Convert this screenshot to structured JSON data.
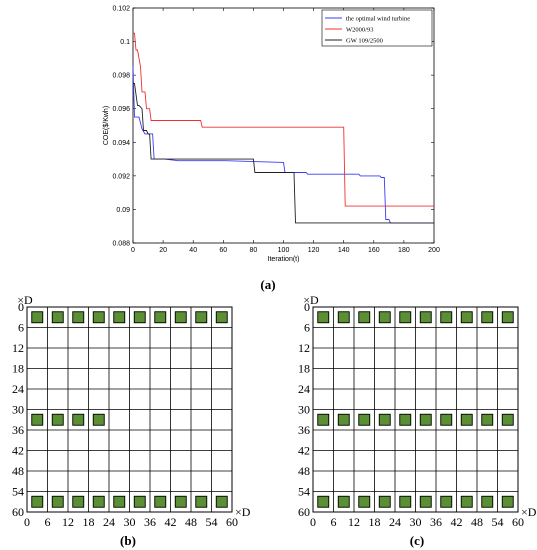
{
  "chart_data": [
    {
      "panel": "(a)",
      "type": "line",
      "xlabel": "Iteration(t)",
      "ylabel": "COE($/Kwh)",
      "xlim": [
        0,
        200
      ],
      "ylim": [
        0.088,
        0.102
      ],
      "xticks": [
        0,
        20,
        40,
        60,
        80,
        100,
        120,
        140,
        160,
        180,
        200
      ],
      "yticks": [
        0.088,
        0.09,
        0.092,
        0.094,
        0.096,
        0.098,
        0.1,
        0.102
      ],
      "ytick_labels": [
        "0.088",
        "0.09",
        "0.092",
        "0.094",
        "0.096",
        "0.098",
        "0.1",
        "0.102"
      ],
      "grid": false,
      "legend_position": "top-right",
      "series": [
        {
          "name": "the optimal wind turbine",
          "color": "#3b3bf5",
          "x": [
            0,
            1,
            2,
            4,
            6,
            8,
            13,
            14,
            20,
            21,
            30,
            31,
            60,
            61,
            100,
            101,
            115,
            116,
            150,
            151,
            164,
            165,
            167,
            168,
            170,
            171,
            200
          ],
          "y": [
            0.0985,
            0.0955,
            0.0955,
            0.0955,
            0.0948,
            0.0945,
            0.0945,
            0.093,
            0.093,
            0.093,
            0.0929,
            0.0929,
            0.0929,
            0.0929,
            0.0928,
            0.0922,
            0.0922,
            0.0921,
            0.0921,
            0.092,
            0.092,
            0.0919,
            0.0919,
            0.0894,
            0.0894,
            0.0892,
            0.0892
          ]
        },
        {
          "name": "W2000/93",
          "color": "#f03030",
          "x": [
            0,
            1,
            2,
            3,
            5,
            6,
            8,
            9,
            11,
            12,
            45,
            46,
            140,
            141,
            200
          ],
          "y": [
            0.1005,
            0.1005,
            0.0995,
            0.0995,
            0.0985,
            0.097,
            0.097,
            0.096,
            0.096,
            0.0953,
            0.0953,
            0.0949,
            0.0949,
            0.0902,
            0.0902
          ]
        },
        {
          "name": "GW 109/2500",
          "color": "#202020",
          "x": [
            0,
            1,
            3,
            4,
            6,
            7,
            9,
            10,
            11,
            12,
            80,
            81,
            107,
            108,
            200
          ],
          "y": [
            0.0975,
            0.0975,
            0.0962,
            0.0962,
            0.096,
            0.0947,
            0.0947,
            0.0945,
            0.0945,
            0.093,
            0.093,
            0.0922,
            0.0922,
            0.0892,
            0.0892
          ]
        }
      ]
    },
    {
      "panel": "(b)",
      "type": "grid",
      "corner_unit": "×D",
      "axis_unit": "×D",
      "xticks": [
        0,
        6,
        12,
        18,
        24,
        30,
        36,
        42,
        48,
        54,
        60
      ],
      "yticks": [
        0,
        6,
        12,
        18,
        24,
        30,
        36,
        42,
        48,
        54,
        60
      ],
      "cell_size": 6,
      "turbine_color": "#5a8f34",
      "turbines": [
        {
          "row": 0,
          "cols": [
            0,
            1,
            2,
            3,
            4,
            5,
            6,
            7,
            8,
            9
          ]
        },
        {
          "row": 5,
          "cols": [
            0,
            1,
            2,
            3
          ]
        },
        {
          "row": 9,
          "cols": [
            0,
            1,
            2,
            3,
            4,
            5,
            6,
            7,
            8,
            9
          ]
        }
      ]
    },
    {
      "panel": "(c)",
      "type": "grid",
      "corner_unit": "×D",
      "axis_unit": "×D",
      "xticks": [
        0,
        6,
        12,
        18,
        24,
        30,
        36,
        42,
        48,
        54,
        60
      ],
      "yticks": [
        0,
        6,
        12,
        18,
        24,
        30,
        36,
        42,
        48,
        54,
        60
      ],
      "cell_size": 6,
      "turbine_color": "#5a8f34",
      "turbines": [
        {
          "row": 0,
          "cols": [
            0,
            1,
            2,
            3,
            4,
            5,
            6,
            7,
            8,
            9
          ]
        },
        {
          "row": 5,
          "cols": [
            0,
            1,
            2,
            3,
            4,
            5,
            6,
            7,
            8,
            9
          ]
        },
        {
          "row": 9,
          "cols": [
            0,
            1,
            2,
            3,
            4,
            5,
            6,
            7,
            8,
            9
          ]
        }
      ]
    }
  ]
}
